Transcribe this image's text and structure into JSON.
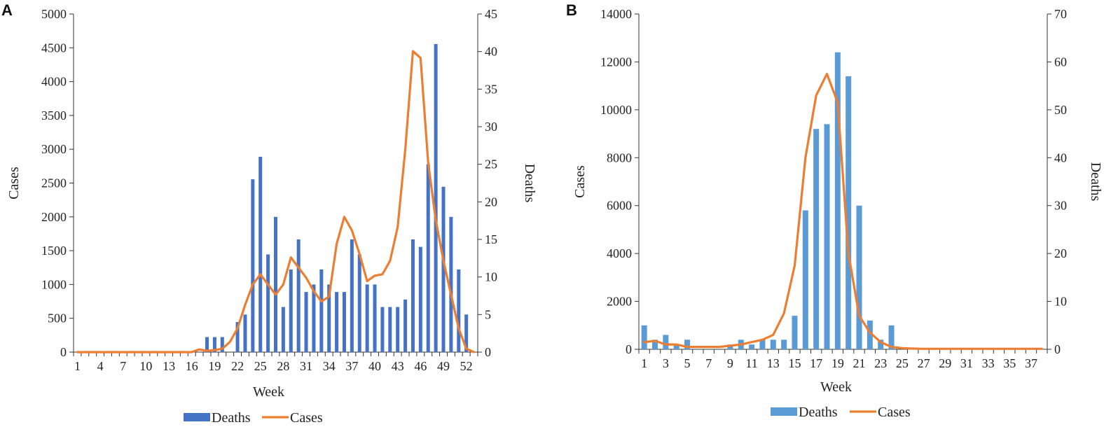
{
  "chart_data": [
    {
      "panel": "A",
      "type": "bar",
      "xlabel": "Week",
      "ylabel": "Cases",
      "y2label": "Deaths",
      "ylim": [
        0,
        5000
      ],
      "yticks": [
        0,
        500,
        1000,
        1500,
        2000,
        2500,
        3000,
        3500,
        4000,
        4500,
        5000
      ],
      "y2lim": [
        0,
        45
      ],
      "y2ticks": [
        0,
        5,
        10,
        15,
        20,
        25,
        30,
        35,
        40,
        45
      ],
      "x": [
        1,
        2,
        3,
        4,
        5,
        6,
        7,
        8,
        9,
        10,
        11,
        12,
        13,
        14,
        15,
        16,
        17,
        18,
        19,
        20,
        21,
        22,
        23,
        24,
        25,
        26,
        27,
        28,
        29,
        30,
        31,
        32,
        33,
        34,
        35,
        36,
        37,
        38,
        39,
        40,
        41,
        42,
        43,
        44,
        45,
        46,
        47,
        48,
        49,
        50,
        51,
        52,
        53
      ],
      "xtick_labels": [
        "1",
        "4",
        "7",
        "10",
        "13",
        "16",
        "19",
        "22",
        "25",
        "28",
        "31",
        "34",
        "37",
        "40",
        "43",
        "46",
        "49",
        "52"
      ],
      "legend_position": "bottom",
      "grid": false,
      "series": [
        {
          "name": "Deaths",
          "type": "bar",
          "axis": "right",
          "color": "#4472c4",
          "values": [
            0,
            0,
            0,
            0,
            0,
            0,
            0,
            0,
            0,
            0,
            0,
            0,
            0,
            0,
            0,
            0,
            0,
            2,
            2,
            2,
            0,
            4,
            5,
            23,
            26,
            13,
            18,
            6,
            11,
            15,
            8,
            9,
            11,
            9,
            8,
            8,
            15,
            13,
            9,
            9,
            6,
            6,
            6,
            7,
            15,
            14,
            25,
            41,
            22,
            18,
            11,
            5,
            0
          ]
        },
        {
          "name": "Cases",
          "type": "line",
          "axis": "left",
          "color": "#ed7d31",
          "values": [
            0,
            0,
            0,
            0,
            0,
            0,
            0,
            0,
            0,
            0,
            0,
            0,
            0,
            0,
            0,
            0,
            40,
            20,
            30,
            50,
            150,
            350,
            700,
            1000,
            1150,
            1000,
            850,
            1000,
            1400,
            1250,
            1100,
            900,
            750,
            820,
            1600,
            2000,
            1800,
            1450,
            1050,
            1130,
            1150,
            1350,
            1850,
            3000,
            4450,
            4350,
            2800,
            1950,
            1350,
            850,
            350,
            50,
            0
          ]
        }
      ]
    },
    {
      "panel": "B",
      "type": "bar",
      "xlabel": "Week",
      "ylabel": "Cases",
      "y2label": "Deaths",
      "ylim": [
        0,
        14000
      ],
      "yticks": [
        0,
        2000,
        4000,
        6000,
        8000,
        10000,
        12000,
        14000
      ],
      "y2lim": [
        0,
        70
      ],
      "y2ticks": [
        0,
        10,
        20,
        30,
        40,
        50,
        60,
        70
      ],
      "x": [
        1,
        2,
        3,
        4,
        5,
        6,
        7,
        8,
        9,
        10,
        11,
        12,
        13,
        14,
        15,
        16,
        17,
        18,
        19,
        20,
        21,
        22,
        23,
        24,
        25,
        26,
        27,
        28,
        29,
        30,
        31,
        32,
        33,
        34,
        35,
        36,
        37,
        38
      ],
      "xtick_labels": [
        "1",
        "3",
        "5",
        "7",
        "9",
        "11",
        "13",
        "15",
        "17",
        "19",
        "21",
        "23",
        "25",
        "27",
        "29",
        "31",
        "33",
        "35",
        "37"
      ],
      "legend_position": "bottom",
      "grid": false,
      "series": [
        {
          "name": "Deaths",
          "type": "bar",
          "axis": "right",
          "color": "#5b9bd5",
          "values": [
            5,
            2,
            3,
            1,
            2,
            0,
            0,
            0,
            1,
            2,
            1,
            2,
            2,
            2,
            7,
            29,
            46,
            47,
            62,
            57,
            30,
            6,
            2,
            5,
            0,
            0,
            0,
            0,
            0,
            0,
            0,
            0,
            0,
            0,
            0,
            0,
            0,
            0
          ]
        },
        {
          "name": "Cases",
          "type": "line",
          "axis": "left",
          "color": "#ed7d31",
          "values": [
            300,
            350,
            200,
            200,
            100,
            100,
            100,
            100,
            150,
            200,
            300,
            400,
            600,
            1500,
            3500,
            8000,
            10600,
            11500,
            10300,
            4000,
            1400,
            700,
            300,
            100,
            50,
            30,
            20,
            20,
            20,
            20,
            20,
            20,
            20,
            20,
            20,
            20,
            20,
            20
          ]
        }
      ]
    }
  ]
}
